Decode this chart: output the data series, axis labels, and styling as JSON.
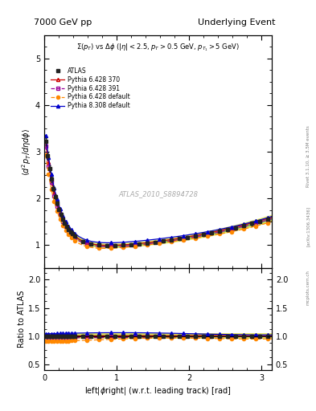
{
  "title_left": "7000 GeV pp",
  "title_right": "Underlying Event",
  "annotation": "ATLAS_2010_S8894728",
  "subtitle": "$\\Sigma(p_T)$ vs $\\Delta\\phi$ ($|\\eta| < 2.5$, $p_T > 0.5$ GeV, $p_{T_1} > 5$ GeV)",
  "right_label_1": "Rivet 3.1.10, ≥ 3.5M events",
  "right_label_2": "[arXiv:1306.3436]",
  "right_label_3": "mcplots.cern.ch",
  "xlabel": "left|$\\phi$right| (w.r.t. leading track) [rad]",
  "ylabel_main": "$\\langle d^2 p_T/d\\eta d\\phi \\rangle$",
  "ylabel_ratio": "Ratio to ATLAS",
  "xlim": [
    0,
    3.14159
  ],
  "ylim_main": [
    0.5,
    5.5
  ],
  "ylim_ratio": [
    0.4,
    2.2
  ],
  "yticks_main": [
    1,
    2,
    3,
    4,
    5
  ],
  "yticks_ratio": [
    0.5,
    1.0,
    1.5,
    2.0
  ],
  "background_color": "#ffffff",
  "legend_entries": [
    "ATLAS",
    "Pythia 6.428 370",
    "Pythia 6.428 391",
    "Pythia 6.428 default",
    "Pythia 8.308 default"
  ],
  "atlas_color": "#222222",
  "py6_370_color": "#cc0000",
  "py6_391_color": "#990099",
  "py6_def_color": "#ff8800",
  "py8_def_color": "#0000cc",
  "band_color_yellow": "#dddd00",
  "band_color_green": "#44aa44"
}
